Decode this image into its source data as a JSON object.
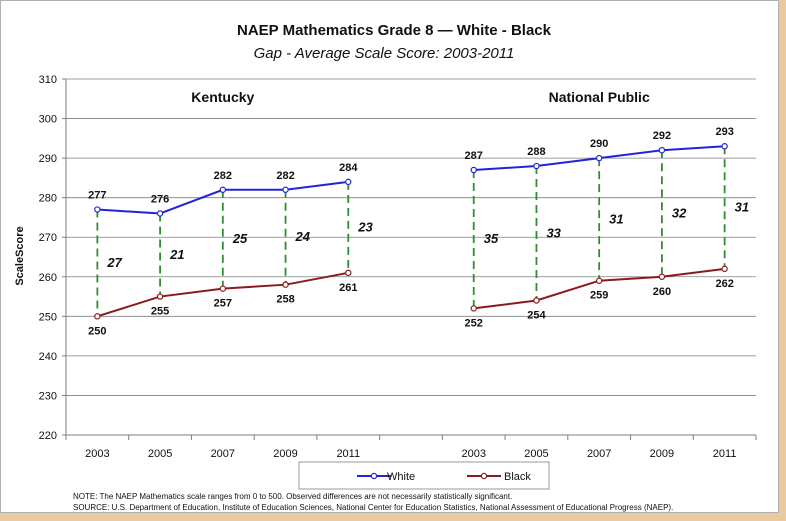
{
  "colors": {
    "white_series": "#2323d8",
    "black_series": "#8b1a1a",
    "gap_line": "#2f8f2f",
    "axis": "#7f7f7f",
    "grid": "#7f7f7f"
  },
  "chart_data": {
    "type": "line",
    "title": "NAEP Mathematics Grade 8 — White - Black",
    "subtitle": "Gap - Average Scale Score: 2003-2011",
    "ylabel": "ScaleScore",
    "ylim": [
      220,
      310
    ],
    "yticks": [
      "220",
      "230",
      "240",
      "250",
      "260",
      "270",
      "280",
      "290",
      "300",
      "310"
    ],
    "grid": true,
    "legend_position": "bottom",
    "legend": [
      "White",
      "Black"
    ],
    "panels": [
      {
        "title": "Kentucky",
        "categories": [
          "2003",
          "2005",
          "2007",
          "2009",
          "2011"
        ],
        "series": [
          {
            "name": "White",
            "values": [
              277,
              276,
              282,
              282,
              284
            ]
          },
          {
            "name": "Black",
            "values": [
              250,
              255,
              257,
              258,
              261
            ]
          }
        ],
        "gaps": [
          "27",
          "21",
          "25",
          "24",
          "23"
        ]
      },
      {
        "title": "National Public",
        "categories": [
          "2003",
          "2005",
          "2007",
          "2009",
          "2011"
        ],
        "series": [
          {
            "name": "White",
            "values": [
              287,
              288,
              290,
              292,
              293
            ]
          },
          {
            "name": "Black",
            "values": [
              252,
              254,
              259,
              260,
              262
            ]
          }
        ],
        "gaps": [
          "35",
          "33",
          "31",
          "32",
          "31"
        ]
      }
    ]
  },
  "notes": {
    "line1": "NOTE: The NAEP Mathematics  scale ranges from 0 to 500.  Observed differences  are not necessarily statistically significant.",
    "line2": "SOURCE: U.S. Department of Education, Institute of Education Sciences, National Center for Education Statistics, National Assessment of Educational Progress (NAEP)."
  }
}
